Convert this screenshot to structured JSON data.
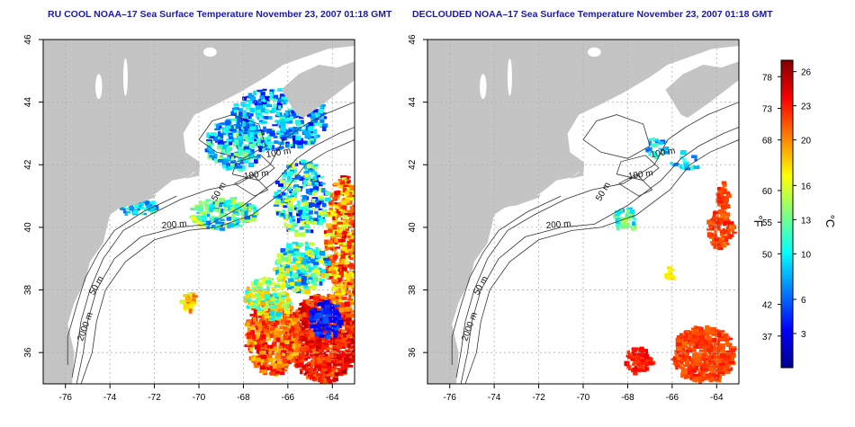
{
  "panels": [
    {
      "title": "RU COOL NOAA–17 Sea Surface Temperature November 23, 2007 01:18 GMT",
      "variant": "cool"
    },
    {
      "title": "DECLOUDED NOAA–17 Sea Surface Temperature November 23, 2007 01:18 GMT",
      "variant": "declouded"
    }
  ],
  "lon_ticks": [
    "-76",
    "-74",
    "-72",
    "-70",
    "-68",
    "-66",
    "-64"
  ],
  "lat_ticks": [
    "36",
    "38",
    "40",
    "42",
    "44",
    "46"
  ],
  "lon_values": [
    -76,
    -74,
    -72,
    -70,
    -68,
    -66,
    -64
  ],
  "lat_values": [
    36,
    38,
    40,
    42,
    44,
    46
  ],
  "lon_range": [
    -77,
    -63
  ],
  "lat_range": [
    35,
    46
  ],
  "bathymetry_labels": [
    "100 m",
    "100 m",
    "50 m",
    "200 m",
    "50 m",
    "2000 m"
  ],
  "colorbar": {
    "fahrenheit_ticks": [
      "78",
      "73",
      "68",
      "60",
      "55",
      "50",
      "42",
      "37"
    ],
    "fahrenheit_values": [
      78,
      73,
      68,
      60,
      55,
      50,
      42,
      37
    ],
    "celsius_ticks": [
      "26",
      "23",
      "20",
      "16",
      "13",
      "10",
      "6",
      "3"
    ],
    "celsius_values": [
      26,
      23,
      20,
      16,
      13,
      10,
      6,
      3
    ],
    "celsius_range": [
      0,
      27
    ],
    "unit_f": "°F",
    "unit_c": "°C",
    "colors": [
      "#00008f",
      "#0000ff",
      "#0080ff",
      "#00ffff",
      "#80ff80",
      "#ffff00",
      "#ff8000",
      "#ff0000",
      "#800000"
    ]
  },
  "colors": {
    "land": "#c4c4c4",
    "ocean_nodata": "#ffffff",
    "grid": "#b0b0b0",
    "title": "#1a1aa6"
  }
}
